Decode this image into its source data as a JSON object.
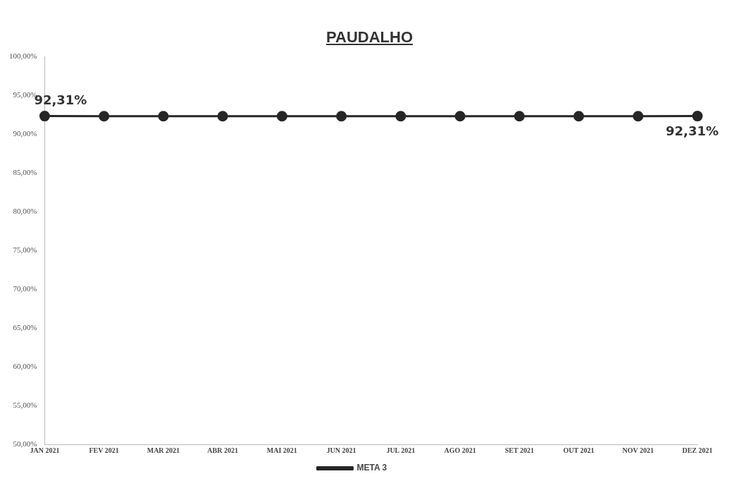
{
  "chart_data": {
    "type": "line",
    "title": "PAUDALHO",
    "categories": [
      "JAN 2021",
      "FEV 2021",
      "MAR 2021",
      "ABR 2021",
      "MAI 2021",
      "JUN 2021",
      "JUL 2021",
      "AGO 2021",
      "SET 2021",
      "OUT 2021",
      "NOV 2021",
      "DEZ 2021"
    ],
    "series": [
      {
        "name": "META 3",
        "color": "#262626",
        "values": [
          92.31,
          92.3,
          92.3,
          92.3,
          92.3,
          92.3,
          92.3,
          92.3,
          92.3,
          92.3,
          92.3,
          92.31
        ],
        "value_labels": [
          "92,31%",
          null,
          null,
          null,
          null,
          null,
          null,
          null,
          null,
          null,
          null,
          "92,31%"
        ]
      }
    ],
    "ylim": [
      50,
      100
    ],
    "yticks": [
      {
        "value": 50,
        "label": "50,00%"
      },
      {
        "value": 55,
        "label": "55,00%"
      },
      {
        "value": 60,
        "label": "60,00%"
      },
      {
        "value": 65,
        "label": "65,00%"
      },
      {
        "value": 70,
        "label": "70,00%"
      },
      {
        "value": 75,
        "label": "75,00%"
      },
      {
        "value": 80,
        "label": "80,00%"
      },
      {
        "value": 85,
        "label": "85,00%"
      },
      {
        "value": 90,
        "label": "90,00%"
      },
      {
        "value": 95,
        "label": "95,00%"
      },
      {
        "value": 100,
        "label": "100,00%"
      }
    ],
    "grid": false,
    "legend": "bottom",
    "marker": "circle",
    "line_style": "solid"
  }
}
